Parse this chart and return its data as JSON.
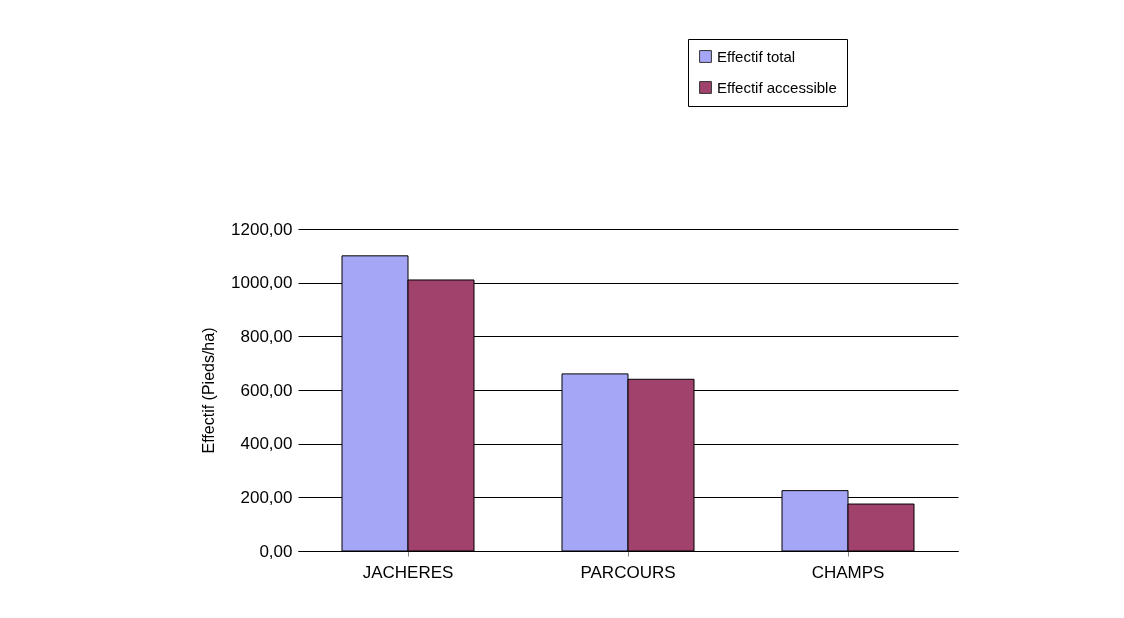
{
  "chart_data": {
    "type": "bar",
    "ylabel": "Effectif (Pieds/ha)",
    "categories": [
      "JACHERES",
      "PARCOURS",
      "CHAMPS"
    ],
    "series": [
      {
        "name": "Effectif total",
        "color": "#a6a6f7",
        "values": [
          1100,
          660,
          225
        ]
      },
      {
        "name": "Effectif accessible",
        "color": "#a0426b",
        "values": [
          1010,
          640,
          175
        ]
      }
    ],
    "ylim": [
      0,
      1200
    ],
    "yticks": [
      {
        "value": 0,
        "label": "0,00"
      },
      {
        "value": 200,
        "label": "200,00"
      },
      {
        "value": 400,
        "label": "400,00"
      },
      {
        "value": 600,
        "label": "600,00"
      },
      {
        "value": 800,
        "label": "800,00"
      },
      {
        "value": 1000,
        "label": "1000,00"
      },
      {
        "value": 1200,
        "label": "1200,00"
      }
    ],
    "grid": "y",
    "legend": "top right"
  }
}
